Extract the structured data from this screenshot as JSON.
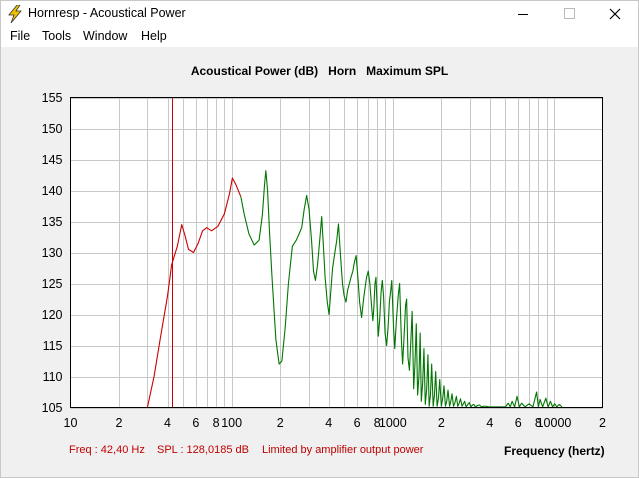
{
  "window": {
    "title": "Hornresp - Acoustical Power",
    "controls": {
      "minimize": "minimize-icon",
      "maximize": "maximize-icon",
      "close": "close-icon"
    }
  },
  "menu": {
    "items": [
      "File",
      "Tools",
      "Window",
      "Help"
    ]
  },
  "chart_title": "Acoustical Power (dB)   Horn   Maximum SPL",
  "status": {
    "freq": "Freq : 42,40 Hz",
    "spl": "SPL : 128,0185 dB",
    "limit": "Limited by amplifier output power"
  },
  "colors": {
    "limited_curve": "#cc0000",
    "normal_curve": "#007700",
    "cursor": "#cc0000",
    "grid": "#c8c8c8"
  },
  "chart_data": {
    "type": "line",
    "title": "Acoustical Power (dB)   Horn   Maximum SPL",
    "xlabel": "Frequency (hertz)",
    "ylabel": "",
    "x_scale": "log",
    "xlim": [
      10,
      20000
    ],
    "ylim": [
      105,
      155
    ],
    "y_ticks": [
      155,
      150,
      145,
      140,
      135,
      130,
      125,
      120,
      115,
      110,
      105
    ],
    "x_tick_labels": [
      {
        "v": 10,
        "t": "10"
      },
      {
        "v": 20,
        "t": "2"
      },
      {
        "v": 40,
        "t": "4"
      },
      {
        "v": 60,
        "t": "6"
      },
      {
        "v": 80,
        "t": "8"
      },
      {
        "v": 100,
        "t": "100"
      },
      {
        "v": 200,
        "t": "2"
      },
      {
        "v": 400,
        "t": "4"
      },
      {
        "v": 600,
        "t": "6"
      },
      {
        "v": 800,
        "t": "8"
      },
      {
        "v": 1000,
        "t": "1000"
      },
      {
        "v": 2000,
        "t": "2"
      },
      {
        "v": 4000,
        "t": "4"
      },
      {
        "v": 6000,
        "t": "6"
      },
      {
        "v": 8000,
        "t": "8"
      },
      {
        "v": 10000,
        "t": "10000"
      },
      {
        "v": 20000,
        "t": "2"
      }
    ],
    "grid": true,
    "cursor": {
      "freq": 42.4,
      "spl": 128.0185
    },
    "series": [
      {
        "color": "#cc0000",
        "points": [
          [
            30,
            105
          ],
          [
            33,
            110
          ],
          [
            36,
            116
          ],
          [
            40,
            123
          ],
          [
            42.4,
            128
          ],
          [
            46,
            131
          ],
          [
            49,
            134.5
          ],
          [
            51,
            133
          ],
          [
            54,
            130.5
          ],
          [
            58,
            130
          ],
          [
            62,
            131.5
          ],
          [
            66,
            133.5
          ],
          [
            70,
            134
          ],
          [
            75,
            133.5
          ],
          [
            82,
            134.2
          ],
          [
            90,
            136.2
          ],
          [
            97,
            139.5
          ],
          [
            101,
            142
          ],
          [
            106,
            141
          ],
          [
            114,
            139
          ]
        ]
      },
      {
        "color": "#007700",
        "points": [
          [
            114,
            139
          ],
          [
            120,
            136
          ],
          [
            128,
            133
          ],
          [
            138,
            131.2
          ],
          [
            148,
            132
          ],
          [
            155,
            136
          ],
          [
            160,
            141
          ],
          [
            163,
            143.2
          ],
          [
            167,
            140
          ],
          [
            172,
            133
          ],
          [
            178,
            126
          ],
          [
            188,
            116
          ],
          [
            197,
            112
          ],
          [
            205,
            112.5
          ],
          [
            215,
            118
          ],
          [
            225,
            125
          ],
          [
            238,
            131
          ],
          [
            252,
            132
          ],
          [
            262,
            133
          ],
          [
            272,
            134
          ],
          [
            282,
            137
          ],
          [
            292,
            139.2
          ],
          [
            302,
            137
          ],
          [
            313,
            132
          ],
          [
            322,
            127
          ],
          [
            331,
            125.5
          ],
          [
            341,
            128
          ],
          [
            352,
            132
          ],
          [
            362,
            135.8
          ],
          [
            371,
            131
          ],
          [
            380,
            126
          ],
          [
            392,
            122
          ],
          [
            402,
            120
          ],
          [
            413,
            124
          ],
          [
            423,
            127.5
          ],
          [
            437,
            130
          ],
          [
            449,
            132
          ],
          [
            460,
            134.6
          ],
          [
            475,
            129
          ],
          [
            487,
            125
          ],
          [
            499,
            123
          ],
          [
            512,
            122
          ],
          [
            525,
            124
          ],
          [
            538,
            125
          ],
          [
            550,
            126
          ],
          [
            565,
            127
          ],
          [
            578,
            128.5
          ],
          [
            592,
            129.5
          ],
          [
            607,
            126
          ],
          [
            622,
            122
          ],
          [
            640,
            119.5
          ],
          [
            662,
            123
          ],
          [
            687,
            126
          ],
          [
            704,
            127
          ],
          [
            720,
            125
          ],
          [
            740,
            121
          ],
          [
            752,
            119
          ],
          [
            762,
            121
          ],
          [
            775,
            125
          ],
          [
            786,
            126
          ],
          [
            800,
            121
          ],
          [
            812,
            116.5
          ],
          [
            828,
            119
          ],
          [
            845,
            123.5
          ],
          [
            860,
            125.5
          ],
          [
            876,
            123
          ],
          [
            895,
            117
          ],
          [
            915,
            115
          ],
          [
            935,
            118
          ],
          [
            952,
            122
          ],
          [
            972,
            124
          ],
          [
            985,
            125.5
          ],
          [
            1010,
            118
          ],
          [
            1028,
            114.5
          ],
          [
            1052,
            119
          ],
          [
            1080,
            123
          ],
          [
            1102,
            125
          ],
          [
            1130,
            116
          ],
          [
            1150,
            112
          ],
          [
            1172,
            116
          ],
          [
            1200,
            121.5
          ],
          [
            1218,
            122.5
          ],
          [
            1242,
            113
          ],
          [
            1268,
            111
          ],
          [
            1295,
            116
          ],
          [
            1318,
            120.5
          ],
          [
            1347,
            108
          ],
          [
            1372,
            112
          ],
          [
            1398,
            118.5
          ],
          [
            1425,
            107
          ],
          [
            1452,
            110
          ],
          [
            1478,
            117
          ],
          [
            1502,
            106
          ],
          [
            1532,
            109
          ],
          [
            1560,
            114.5
          ],
          [
            1590,
            105.5
          ],
          [
            1622,
            108
          ],
          [
            1652,
            113.5
          ],
          [
            1680,
            105.2
          ],
          [
            1712,
            107
          ],
          [
            1742,
            112
          ],
          [
            1780,
            105.2
          ],
          [
            1812,
            107
          ],
          [
            1845,
            110.8
          ],
          [
            1882,
            105.2
          ],
          [
            1920,
            106.5
          ],
          [
            1955,
            109.5
          ],
          [
            2000,
            105.2
          ],
          [
            2040,
            106.5
          ],
          [
            2078,
            108.5
          ],
          [
            2120,
            105.2
          ],
          [
            2160,
            106
          ],
          [
            2200,
            107.8
          ],
          [
            2250,
            105.2
          ],
          [
            2290,
            106
          ],
          [
            2330,
            107.2
          ],
          [
            2380,
            105.2
          ],
          [
            2430,
            105.8
          ],
          [
            2480,
            106.8
          ],
          [
            2530,
            105.2
          ],
          [
            2580,
            105.7
          ],
          [
            2630,
            106.4
          ],
          [
            2690,
            105.2
          ],
          [
            2740,
            105.6
          ],
          [
            2790,
            106
          ],
          [
            2850,
            105.1
          ],
          [
            2920,
            105.5
          ],
          [
            2980,
            105.8
          ],
          [
            3050,
            105.1
          ],
          [
            3120,
            105.4
          ],
          [
            3180,
            105.5
          ],
          [
            3260,
            105.1
          ],
          [
            3350,
            105.3
          ],
          [
            3450,
            105.4
          ],
          [
            3550,
            105.1
          ],
          [
            3650,
            105.2
          ],
          [
            3800,
            105.2
          ],
          [
            3950,
            105.1
          ],
          [
            4200,
            105.1
          ],
          [
            5000,
            105.1
          ],
          [
            5200,
            105.7
          ],
          [
            5350,
            105.1
          ],
          [
            5500,
            106
          ],
          [
            5700,
            105.1
          ],
          [
            5900,
            106.8
          ],
          [
            6100,
            105.1
          ],
          [
            6300,
            105.7
          ],
          [
            6600,
            105.1
          ],
          [
            7000,
            105.6
          ],
          [
            7400,
            105.1
          ],
          [
            7800,
            107.5
          ],
          [
            8000,
            105.1
          ],
          [
            8200,
            106.3
          ],
          [
            8500,
            105.1
          ],
          [
            8900,
            106.5
          ],
          [
            9200,
            105.1
          ],
          [
            9500,
            106
          ],
          [
            9800,
            105.1
          ],
          [
            10100,
            105.6
          ],
          [
            10400,
            105.1
          ],
          [
            10800,
            105.5
          ],
          [
            11200,
            105.1
          ]
        ]
      }
    ]
  }
}
